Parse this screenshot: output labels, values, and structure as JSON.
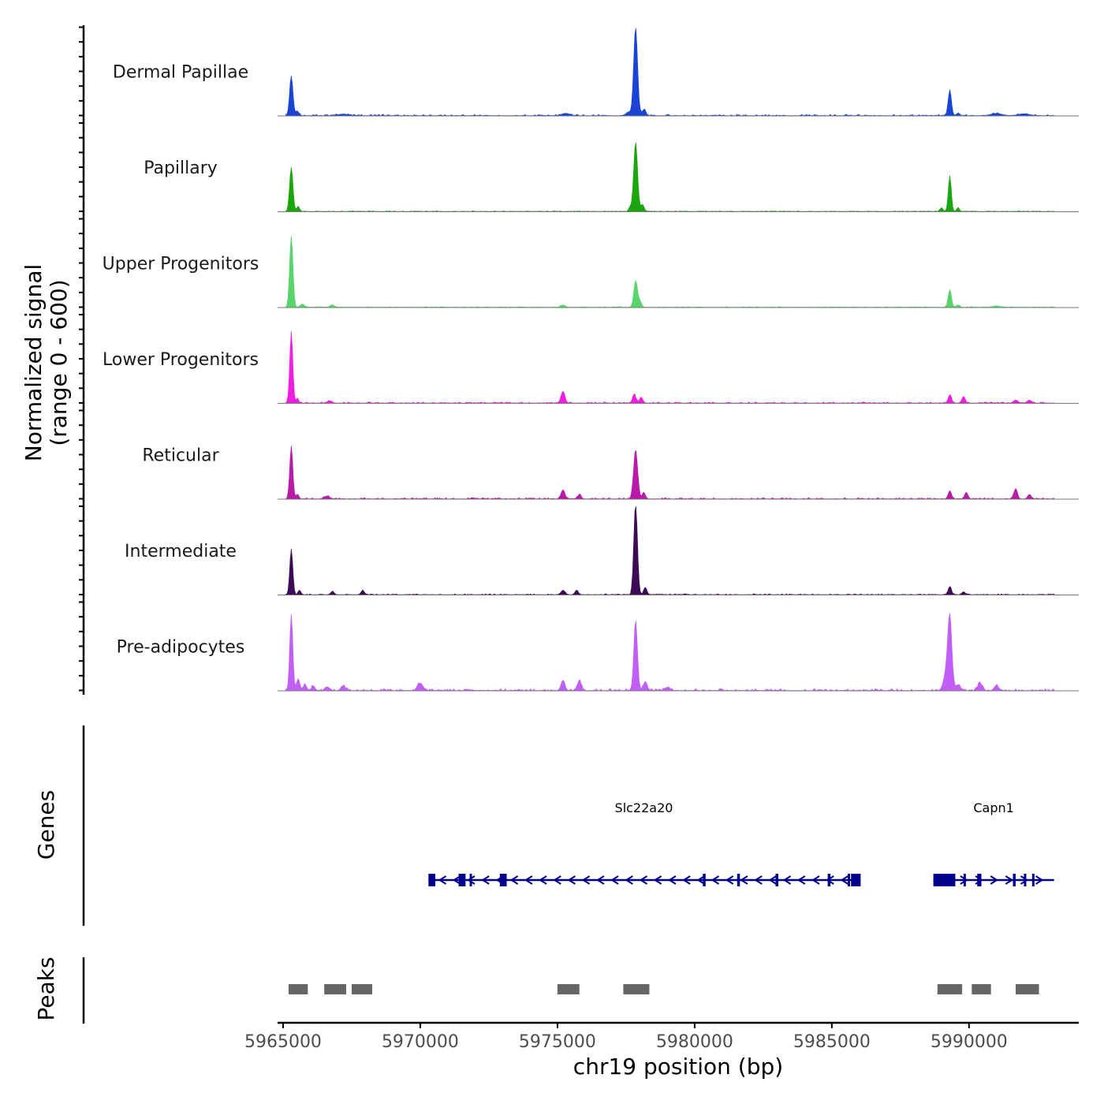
{
  "chart_data": {
    "type": "area",
    "chromosome": "chr19",
    "xlabel": "chr19 position (bp)",
    "ylabel": "Normalized signal",
    "ylabel_range": "(range 0 - 600)",
    "xlim": [
      5964800,
      5994000
    ],
    "ylim": [
      0,
      600
    ],
    "x_ticks": [
      5965000,
      5970000,
      5975000,
      5980000,
      5985000,
      5990000
    ],
    "x_tick_labels": [
      "5965000",
      "5970000",
      "5975000",
      "5980000",
      "5985000",
      "5990000"
    ],
    "tracks": [
      {
        "name": "Dermal Papillae",
        "color": "#1a44d6",
        "peaks": [
          [
            5965300,
            270,
            60
          ],
          [
            5965520,
            30,
            60
          ],
          [
            5967200,
            10,
            200
          ],
          [
            5975300,
            15,
            150
          ],
          [
            5977600,
            25,
            100
          ],
          [
            5977850,
            600,
            70
          ],
          [
            5978150,
            40,
            70
          ],
          [
            5989300,
            170,
            60
          ],
          [
            5989600,
            15,
            60
          ],
          [
            5991000,
            14,
            200
          ],
          [
            5992000,
            12,
            200
          ]
        ],
        "noise": 8
      },
      {
        "name": "Papillary",
        "color": "#1ba60d",
        "peaks": [
          [
            5965300,
            300,
            60
          ],
          [
            5965550,
            35,
            50
          ],
          [
            5977850,
            470,
            70
          ],
          [
            5978100,
            45,
            60
          ],
          [
            5977650,
            30,
            50
          ],
          [
            5989300,
            240,
            55
          ],
          [
            5989000,
            25,
            50
          ],
          [
            5989600,
            25,
            50
          ]
        ],
        "noise": 4
      },
      {
        "name": "Upper Progenitors",
        "color": "#59d36b",
        "peaks": [
          [
            5965300,
            480,
            60
          ],
          [
            5965700,
            20,
            80
          ],
          [
            5966800,
            15,
            80
          ],
          [
            5975200,
            15,
            80
          ],
          [
            5977850,
            180,
            65
          ],
          [
            5978000,
            40,
            60
          ],
          [
            5989300,
            120,
            60
          ],
          [
            5989600,
            15,
            60
          ],
          [
            5991000,
            8,
            150
          ]
        ],
        "noise": 4
      },
      {
        "name": "Lower Progenitors",
        "color": "#f01ee0",
        "peaks": [
          [
            5965300,
            480,
            55
          ],
          [
            5965520,
            30,
            50
          ],
          [
            5966700,
            15,
            80
          ],
          [
            5975200,
            80,
            70
          ],
          [
            5977800,
            60,
            60
          ],
          [
            5978050,
            40,
            60
          ],
          [
            5989300,
            55,
            60
          ],
          [
            5989800,
            45,
            60
          ],
          [
            5991700,
            20,
            80
          ],
          [
            5992200,
            20,
            80
          ]
        ],
        "noise": 7
      },
      {
        "name": "Reticular",
        "color": "#b81ba8",
        "peaks": [
          [
            5965300,
            360,
            55
          ],
          [
            5965520,
            30,
            50
          ],
          [
            5966600,
            18,
            100
          ],
          [
            5975200,
            60,
            70
          ],
          [
            5975800,
            30,
            60
          ],
          [
            5977850,
            330,
            75
          ],
          [
            5978150,
            40,
            60
          ],
          [
            5989300,
            55,
            60
          ],
          [
            5989900,
            45,
            60
          ],
          [
            5991700,
            70,
            60
          ],
          [
            5992200,
            30,
            60
          ]
        ],
        "noise": 7
      },
      {
        "name": "Intermediate",
        "color": "#3d0a56",
        "peaks": [
          [
            5965300,
            310,
            55
          ],
          [
            5965600,
            30,
            50
          ],
          [
            5966800,
            22,
            60
          ],
          [
            5967900,
            28,
            60
          ],
          [
            5975200,
            30,
            70
          ],
          [
            5975700,
            30,
            60
          ],
          [
            5977850,
            630,
            65
          ],
          [
            5978200,
            50,
            60
          ],
          [
            5989300,
            55,
            60
          ],
          [
            5989800,
            20,
            60
          ]
        ],
        "noise": 5
      },
      {
        "name": "Pre-adipocytes",
        "color": "#c05ef6",
        "peaks": [
          [
            5965300,
            520,
            55
          ],
          [
            5965550,
            80,
            60
          ],
          [
            5965800,
            40,
            60
          ],
          [
            5966100,
            30,
            60
          ],
          [
            5966600,
            25,
            80
          ],
          [
            5967200,
            30,
            80
          ],
          [
            5970000,
            50,
            100
          ],
          [
            5975200,
            70,
            70
          ],
          [
            5975800,
            70,
            70
          ],
          [
            5977850,
            470,
            65
          ],
          [
            5978200,
            60,
            70
          ],
          [
            5979000,
            20,
            100
          ],
          [
            5989150,
            100,
            90
          ],
          [
            5989300,
            500,
            75
          ],
          [
            5989600,
            40,
            80
          ],
          [
            5990400,
            50,
            80
          ],
          [
            5991000,
            35,
            80
          ]
        ],
        "noise": 12
      }
    ],
    "genes_track_label": "Genes",
    "genes": [
      {
        "name": "Slc22a20",
        "strand": "-",
        "start": 5970300,
        "end": 5986000,
        "exons": [
          [
            5970300,
            5970550
          ],
          [
            5971400,
            5971650
          ],
          [
            5971800,
            5971870
          ],
          [
            5972900,
            5973150
          ],
          [
            5980300,
            5980400
          ],
          [
            5981550,
            5981650
          ],
          [
            5982950,
            5983050
          ],
          [
            5984850,
            5984950
          ],
          [
            5985580,
            5985650
          ],
          [
            5985700,
            5986050
          ]
        ]
      },
      {
        "name": "Capn1",
        "strand": "+",
        "start": 5988700,
        "end": 5993100,
        "exons": [
          [
            5988700,
            5989500
          ],
          [
            5989800,
            5989880
          ],
          [
            5990300,
            5990450
          ],
          [
            5991600,
            5991700
          ],
          [
            5992000,
            5992080
          ],
          [
            5992300,
            5992380
          ]
        ]
      }
    ],
    "peaks_track_label": "Peaks",
    "peak_regions": [
      [
        5965200,
        5965900
      ],
      [
        5966500,
        5967300
      ],
      [
        5967500,
        5968250
      ],
      [
        5975000,
        5975800
      ],
      [
        5977400,
        5978350
      ],
      [
        5988850,
        5989750
      ],
      [
        5990100,
        5990800
      ],
      [
        5991700,
        5992550
      ]
    ],
    "colors": {
      "genes": "#00008b",
      "peaks": "#666666",
      "baseline": "#777777",
      "axis": "#000000"
    }
  }
}
